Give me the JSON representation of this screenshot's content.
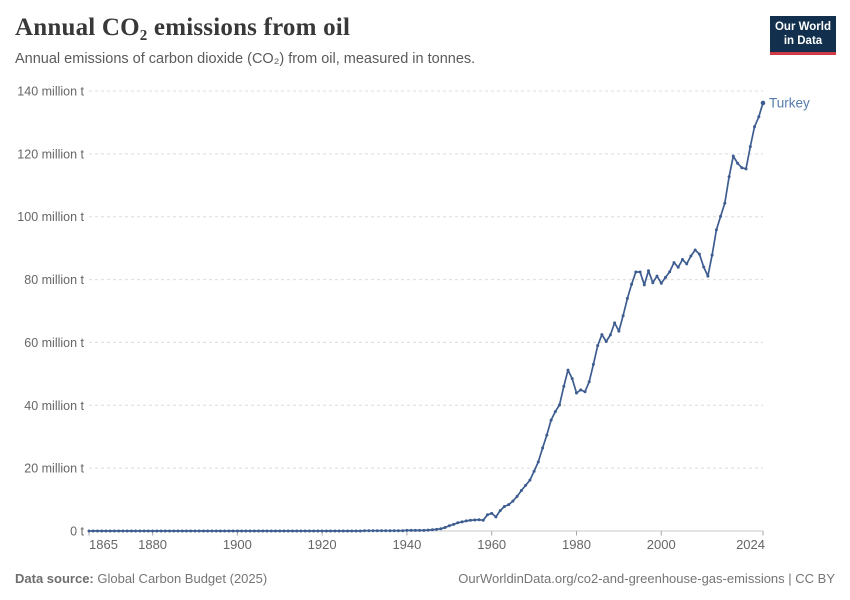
{
  "header": {
    "title": "Annual CO₂ emissions from oil",
    "subtitle": "Annual emissions of carbon dioxide (CO₂) from oil, measured in tonnes.",
    "logo": {
      "line1": "Our World",
      "line2": "in Data",
      "bg_color": "#12304d",
      "accent_color": "#cf3a45"
    }
  },
  "footer": {
    "source_label": "Data source:",
    "source_text": " Global Carbon Budget (2025)",
    "link_text": "OurWorldinData.org/co2-and-greenhouse-gas-emissions | CC BY"
  },
  "chart_data": {
    "type": "line",
    "title": "Annual CO₂ emissions from oil",
    "unit": "million t",
    "xlim": [
      1865,
      2024
    ],
    "ylim": [
      0,
      140
    ],
    "grid": "horizontal-dashed",
    "legend_position": "end-of-line-label",
    "x_ticks": [
      1865,
      1880,
      1900,
      1920,
      1940,
      1960,
      1980,
      2000,
      2024
    ],
    "y_ticks": [
      {
        "value": 0,
        "label": "0 t"
      },
      {
        "value": 20,
        "label": "20 million t"
      },
      {
        "value": 40,
        "label": "40 million t"
      },
      {
        "value": 60,
        "label": "60 million t"
      },
      {
        "value": 80,
        "label": "80 million t"
      },
      {
        "value": 100,
        "label": "100 million t"
      },
      {
        "value": 120,
        "label": "120 million t"
      },
      {
        "value": 140,
        "label": "140 million t"
      }
    ],
    "series": [
      {
        "name": "Turkey",
        "color": "#3d5c8f",
        "label_color": "#577cab",
        "start_year": 1865,
        "end_year": 2024,
        "values": [
          0,
          0,
          0,
          0,
          0,
          0,
          0,
          0,
          0,
          0,
          0,
          0,
          0,
          0,
          0,
          0,
          0,
          0,
          0,
          0,
          0,
          0,
          0,
          0,
          0,
          0,
          0,
          0,
          0,
          0,
          0,
          0,
          0,
          0,
          0,
          0,
          0,
          0,
          0,
          0,
          0,
          0,
          0,
          0,
          0,
          0,
          0,
          0,
          0,
          0,
          0,
          0,
          0,
          0,
          0,
          0,
          0,
          0,
          0,
          0,
          0,
          0,
          0,
          0,
          0,
          0.1,
          0.1,
          0.1,
          0.1,
          0.1,
          0.1,
          0.1,
          0.1,
          0.1,
          0.1,
          0.2,
          0.2,
          0.2,
          0.2,
          0.2,
          0.3,
          0.4,
          0.5,
          0.7,
          1.1,
          1.7,
          2.1,
          2.6,
          2.9,
          3.2,
          3.4,
          3.5,
          3.6,
          3.4,
          5.2,
          5.6,
          4.5,
          6.5,
          7.8,
          8.4,
          9.5,
          11.0,
          12.9,
          14.5,
          16.2,
          19.0,
          22.0,
          26.4,
          30.5,
          35.3,
          38.0,
          40.1,
          46.0,
          51.2,
          48.5,
          43.9,
          44.9,
          44.3,
          47.5,
          53.0,
          59.0,
          62.5,
          60.3,
          62.4,
          66.2,
          63.6,
          68.5,
          74.0,
          78.5,
          82.4,
          82.4,
          78.3,
          82.8,
          79.0,
          81.1,
          78.8,
          80.7,
          82.5,
          85.4,
          83.9,
          86.4,
          85.0,
          87.5,
          89.4,
          88.1,
          84.0,
          81.1,
          87.8,
          95.8,
          100.1,
          104.3,
          112.7,
          119.3,
          117.0,
          115.6,
          115.2,
          122.3,
          128.6,
          131.8,
          136.2
        ]
      }
    ]
  }
}
